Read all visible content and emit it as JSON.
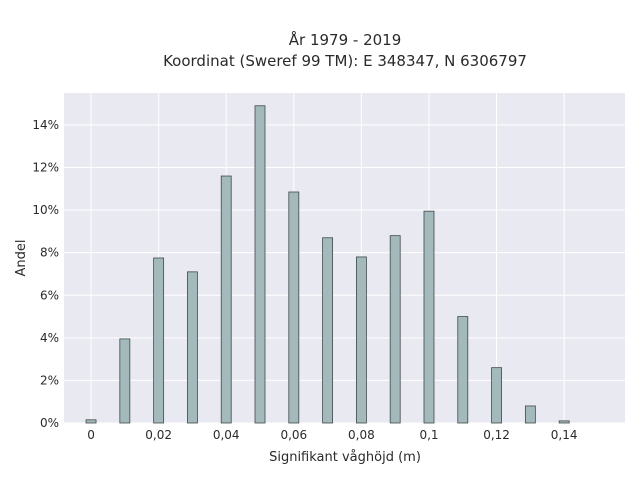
{
  "chart_data": {
    "type": "bar",
    "title_line1": "År 1979 - 2019",
    "title_line2": "Koordinat (Sweref 99 TM): E 348347, N 6306797",
    "xlabel": "Signifikant våghöjd (m)",
    "ylabel": "Andel",
    "x": [
      0,
      0.01,
      0.02,
      0.03,
      0.04,
      0.05,
      0.06,
      0.07,
      0.08,
      0.09,
      0.1,
      0.11,
      0.12,
      0.13,
      0.14
    ],
    "values": [
      0.15,
      3.95,
      7.75,
      7.1,
      11.6,
      14.9,
      10.85,
      8.7,
      7.8,
      8.8,
      9.95,
      5.0,
      2.6,
      0.8,
      0.1
    ],
    "xlim": [
      -0.008,
      0.158
    ],
    "ylim": [
      0,
      15.5
    ],
    "xticks": [
      0,
      0.02,
      0.04,
      0.06,
      0.08,
      0.1,
      0.12,
      0.14
    ],
    "xtick_labels": [
      "0",
      "0,02",
      "0,04",
      "0,06",
      "0,08",
      "0,1",
      "0,12",
      "0,14"
    ],
    "yticks": [
      0,
      2,
      4,
      6,
      8,
      10,
      12,
      14
    ],
    "ytick_labels": [
      "0%",
      "2%",
      "4%",
      "6%",
      "8%",
      "10%",
      "12%",
      "14%"
    ],
    "grid": true,
    "colors": {
      "bar_fill": "#a3b9bb",
      "bar_stroke": "#3e4a4a",
      "plot_bg": "#e9e9f1",
      "grid": "#ffffff"
    }
  }
}
